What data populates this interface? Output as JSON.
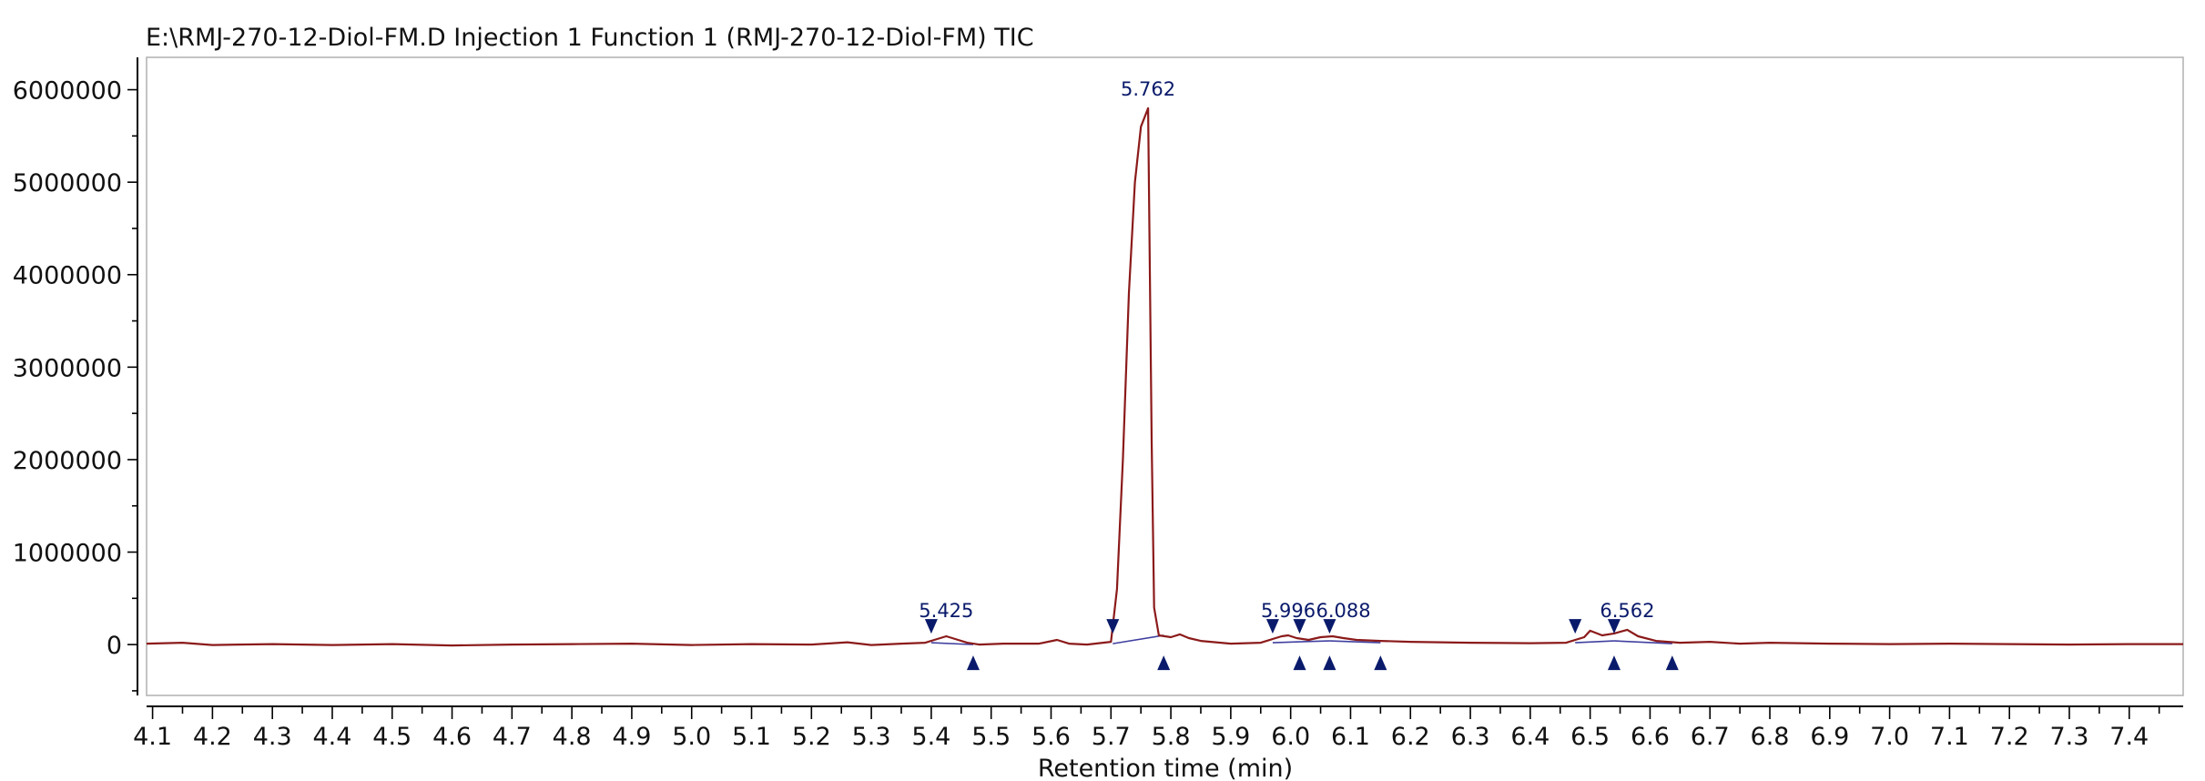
{
  "title": "E:\\RMJ-270-12-Diol-FM.D Injection 1 Function 1 (RMJ-270-12-Diol-FM) TIC",
  "colors": {
    "trace": "#8b1a1a",
    "baseline": "#4040a0",
    "marker": "#0a1a6b",
    "frame": "#b0b0b0",
    "axis": "#000000"
  },
  "chart_data": {
    "type": "line",
    "title": "E:\\RMJ-270-12-Diol-FM.D Injection 1 Function 1 (RMJ-270-12-Diol-FM) TIC",
    "xlabel": "Retention time (min)",
    "ylabel": "",
    "xlim": [
      4.09,
      7.49
    ],
    "ylim": [
      -550000,
      6350000
    ],
    "grid": false,
    "x_ticks": [
      "4.1",
      "4.2",
      "4.3",
      "4.4",
      "4.5",
      "4.6",
      "4.7",
      "4.8",
      "4.9",
      "5.0",
      "5.1",
      "5.2",
      "5.3",
      "5.4",
      "5.5",
      "5.6",
      "5.7",
      "5.8",
      "5.9",
      "6.0",
      "6.1",
      "6.2",
      "6.3",
      "6.4",
      "6.5",
      "6.6",
      "6.7",
      "6.8",
      "6.9",
      "7.0",
      "7.1",
      "7.2",
      "7.3",
      "7.4"
    ],
    "y_ticks": [
      "6000000",
      "5000000",
      "4000000",
      "3000000",
      "2000000",
      "1000000",
      "0"
    ],
    "series": [
      {
        "color": "#8b1a1a",
        "x": [
          4.09,
          4.15,
          4.2,
          4.3,
          4.4,
          4.5,
          4.6,
          4.7,
          4.8,
          4.9,
          5.0,
          5.1,
          5.2,
          5.26,
          5.3,
          5.35,
          5.39,
          5.41,
          5.425,
          5.44,
          5.46,
          5.48,
          5.52,
          5.58,
          5.61,
          5.63,
          5.66,
          5.7,
          5.71,
          5.72,
          5.73,
          5.74,
          5.75,
          5.762,
          5.768,
          5.772,
          5.78,
          5.8,
          5.815,
          5.83,
          5.85,
          5.9,
          5.95,
          5.97,
          5.985,
          5.996,
          6.01,
          6.03,
          6.05,
          6.07,
          6.088,
          6.11,
          6.15,
          6.2,
          6.3,
          6.4,
          6.46,
          6.49,
          6.5,
          6.52,
          6.54,
          6.562,
          6.58,
          6.61,
          6.65,
          6.7,
          6.75,
          6.8,
          6.9,
          7.0,
          7.1,
          7.2,
          7.3,
          7.4,
          7.49
        ],
        "values": [
          10000,
          20000,
          -5000,
          5000,
          -5000,
          5000,
          -10000,
          0,
          5000,
          10000,
          -5000,
          5000,
          0,
          25000,
          -5000,
          10000,
          20000,
          60000,
          90000,
          60000,
          20000,
          0,
          10000,
          10000,
          50000,
          10000,
          0,
          30000,
          600000,
          2000000,
          3800000,
          5000000,
          5600000,
          5800000,
          2200000,
          400000,
          100000,
          80000,
          110000,
          70000,
          40000,
          10000,
          20000,
          60000,
          90000,
          100000,
          70000,
          50000,
          80000,
          90000,
          70000,
          50000,
          40000,
          30000,
          20000,
          15000,
          20000,
          80000,
          150000,
          100000,
          120000,
          160000,
          90000,
          40000,
          20000,
          30000,
          10000,
          20000,
          10000,
          5000,
          10000,
          5000,
          0,
          5000,
          5000
        ]
      }
    ],
    "baselines": [
      {
        "x": [
          5.4,
          5.47
        ],
        "values": [
          20000,
          0
        ]
      },
      {
        "x": [
          5.703,
          5.788
        ],
        "values": [
          10000,
          100000
        ]
      },
      {
        "x": [
          5.97,
          6.015
        ],
        "values": [
          20000,
          30000
        ]
      },
      {
        "x": [
          6.015,
          6.065
        ],
        "values": [
          30000,
          40000
        ]
      },
      {
        "x": [
          6.065,
          6.15
        ],
        "values": [
          40000,
          20000
        ]
      },
      {
        "x": [
          6.475,
          6.54
        ],
        "values": [
          20000,
          40000
        ]
      },
      {
        "x": [
          6.54,
          6.637
        ],
        "values": [
          40000,
          10000
        ]
      }
    ],
    "markers_down": [
      5.4,
      5.703,
      5.97,
      6.015,
      6.065,
      6.475,
      6.54
    ],
    "markers_up": [
      5.47,
      5.788,
      6.015,
      6.065,
      6.15,
      6.54,
      6.637
    ],
    "peak_labels": [
      {
        "x": 5.425,
        "y": 90000,
        "label": "5.425"
      },
      {
        "x": 5.762,
        "y": 5800000,
        "label": "5.762"
      },
      {
        "x": 5.996,
        "y": 100000,
        "label": "5.996"
      },
      {
        "x": 6.088,
        "y": 90000,
        "label": "6.088"
      },
      {
        "x": 6.562,
        "y": 160000,
        "label": "6.562"
      }
    ]
  }
}
